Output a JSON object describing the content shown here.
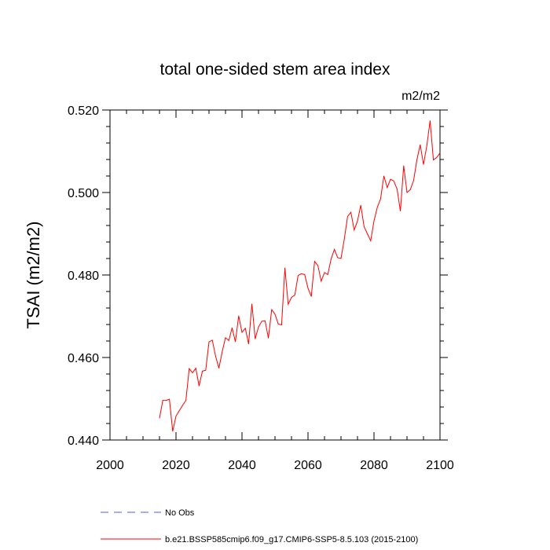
{
  "chart_data": {
    "type": "line",
    "title": "total one-sided stem area index",
    "units_label": "m2/m2",
    "ylabel": "TSAI  (m2/m2)",
    "xlabel": "",
    "xlim": [
      2000,
      2100
    ],
    "ylim": [
      0.44,
      0.52
    ],
    "x_ticks": [
      "2000",
      "2020",
      "2040",
      "2060",
      "2080",
      "2100"
    ],
    "y_ticks": [
      "0.440",
      "0.460",
      "0.480",
      "0.500",
      "0.520"
    ],
    "grid": false,
    "series": [
      {
        "name": "b.e21.BSSP585cmip6.f09_g17.CMIP6-SSP5-8.5.103 (2015-2100)",
        "color": "#ff0000",
        "style": "solid",
        "x": [
          2015,
          2016,
          2017,
          2018,
          2019,
          2020,
          2021,
          2022,
          2023,
          2024,
          2025,
          2026,
          2027,
          2028,
          2029,
          2030,
          2031,
          2032,
          2033,
          2034,
          2035,
          2036,
          2037,
          2038,
          2039,
          2040,
          2041,
          2042,
          2043,
          2044,
          2045,
          2046,
          2047,
          2048,
          2049,
          2050,
          2051,
          2052,
          2053,
          2054,
          2055,
          2056,
          2057,
          2058,
          2059,
          2060,
          2061,
          2062,
          2063,
          2064,
          2065,
          2066,
          2067,
          2068,
          2069,
          2070,
          2071,
          2072,
          2073,
          2074,
          2075,
          2076,
          2077,
          2078,
          2079,
          2080,
          2081,
          2082,
          2083,
          2084,
          2085,
          2086,
          2087,
          2088,
          2089,
          2090,
          2091,
          2092,
          2093,
          2094,
          2095,
          2096,
          2097,
          2098,
          2099,
          2100
        ],
        "y": [
          0.4453,
          0.4496,
          0.4496,
          0.4499,
          0.4421,
          0.4458,
          0.4471,
          0.4484,
          0.4496,
          0.4573,
          0.4563,
          0.4574,
          0.4531,
          0.4567,
          0.4569,
          0.4638,
          0.4642,
          0.4603,
          0.4574,
          0.4614,
          0.4648,
          0.4641,
          0.4672,
          0.4638,
          0.4701,
          0.4661,
          0.4671,
          0.4633,
          0.473,
          0.4645,
          0.4674,
          0.4688,
          0.4689,
          0.4647,
          0.4716,
          0.4705,
          0.4681,
          0.4679,
          0.4817,
          0.4729,
          0.4746,
          0.4751,
          0.4799,
          0.4803,
          0.4801,
          0.4768,
          0.4748,
          0.4833,
          0.4823,
          0.4785,
          0.4806,
          0.4801,
          0.4839,
          0.4862,
          0.4842,
          0.484,
          0.4887,
          0.4942,
          0.4952,
          0.4909,
          0.4931,
          0.4969,
          0.4917,
          0.49,
          0.4883,
          0.4931,
          0.4964,
          0.4985,
          0.504,
          0.5012,
          0.5032,
          0.5028,
          0.5008,
          0.4955,
          0.5065,
          0.5,
          0.5007,
          0.5029,
          0.5079,
          0.5116,
          0.5068,
          0.5113,
          0.5174,
          0.5079,
          0.5085,
          0.5096
        ]
      },
      {
        "name": "No Obs",
        "color": "#5555ff",
        "style": "dashed",
        "x": [],
        "y": []
      }
    ]
  }
}
